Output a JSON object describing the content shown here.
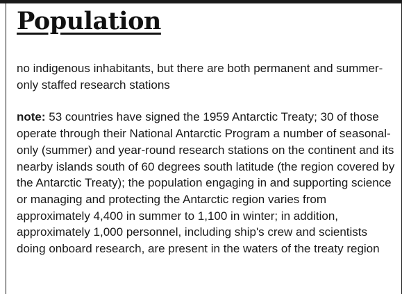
{
  "section": {
    "title": "Population"
  },
  "summary": {
    "text": "no indigenous inhabitants, but there are both permanent and summer-only staffed research stations"
  },
  "note": {
    "label": "note:",
    "text": "53 countries have signed the 1959 Antarctic Treaty; 30 of those operate through their National Antarctic Program a number of seasonal-only (summer) and year-round research stations on the continent and its nearby islands south of 60 degrees south latitude (the region covered by the Antarctic Treaty); the population engaging in and supporting science or managing and protecting the Antarctic region varies from approximately 4,400 in summer to 1,100 in winter; in addition, approximately 1,000 personnel, including ship's crew and scientists doing onboard research, are present in the waters of the treaty region"
  }
}
